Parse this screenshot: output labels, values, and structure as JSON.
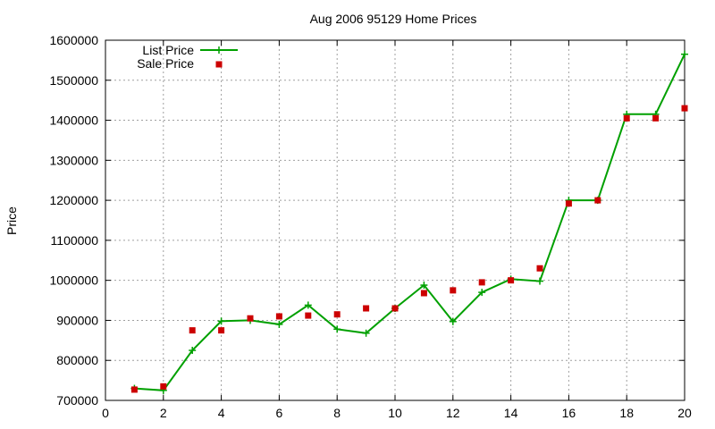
{
  "chart_data": {
    "type": "line",
    "title": "Aug 2006 95129 Home Prices",
    "xlabel": "",
    "ylabel": "Price",
    "xlim": [
      0,
      20
    ],
    "ylim": [
      700000,
      1600000
    ],
    "x_ticks": [
      "0",
      "2",
      "4",
      "6",
      "8",
      "10",
      "12",
      "14",
      "16",
      "18",
      "20"
    ],
    "y_ticks": [
      "700000",
      "800000",
      "900000",
      "1000000",
      "1100000",
      "1200000",
      "1300000",
      "1400000",
      "1500000",
      "1600000"
    ],
    "grid": true,
    "legend_position": "top-left",
    "x": [
      1,
      2,
      3,
      4,
      5,
      6,
      7,
      8,
      9,
      10,
      11,
      12,
      13,
      14,
      15,
      16,
      17,
      18,
      19,
      20
    ],
    "series": [
      {
        "name": "List Price",
        "style": "line-with-plus-markers",
        "color": "#00a000",
        "values": [
          730000,
          725000,
          825000,
          898000,
          900000,
          890000,
          938000,
          878000,
          868000,
          930000,
          988000,
          897000,
          970000,
          1003000,
          998000,
          1200000,
          1200000,
          1415000,
          1415000,
          1565000
        ]
      },
      {
        "name": "Sale Price",
        "style": "square-markers",
        "color": "#cc0000",
        "values": [
          727000,
          735000,
          875000,
          875000,
          905000,
          910000,
          912000,
          915000,
          930000,
          930000,
          968000,
          975000,
          995000,
          1000000,
          1030000,
          1192000,
          1200000,
          1405000,
          1405000,
          1430000
        ]
      }
    ]
  }
}
